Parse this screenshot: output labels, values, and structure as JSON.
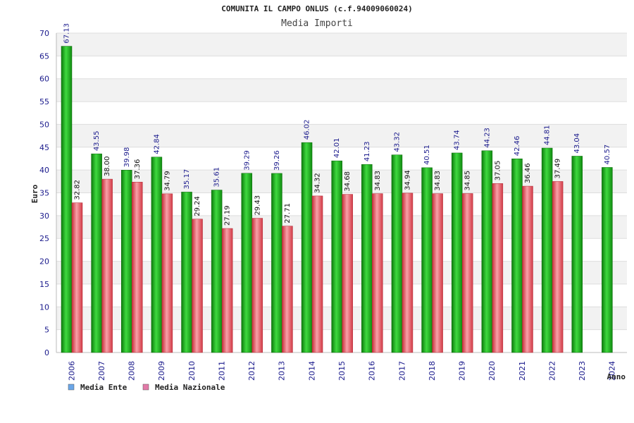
{
  "chart_data": {
    "type": "bar",
    "title": "COMUNITA IL CAMPO ONLUS (c.f.94009060024)",
    "subtitle": "Media Importi",
    "xlabel": "Anno",
    "ylabel": "Euro",
    "ylim": [
      0,
      70
    ],
    "ytick_step": 5,
    "grid": true,
    "legend_position": "bottom-left",
    "categories": [
      "2006",
      "2007",
      "2008",
      "2009",
      "2010",
      "2011",
      "2012",
      "2013",
      "2014",
      "2015",
      "2016",
      "2017",
      "2018",
      "2019",
      "2020",
      "2021",
      "2022",
      "2023",
      "2024"
    ],
    "series": [
      {
        "name": "Media Ente",
        "color": "#22b022",
        "label_color": "#1a1a8c",
        "values": [
          67.13,
          43.55,
          39.98,
          42.84,
          35.17,
          35.61,
          39.29,
          39.26,
          46.02,
          42.01,
          41.23,
          43.32,
          40.51,
          43.74,
          44.23,
          42.46,
          44.81,
          43.04,
          40.57
        ],
        "labels": [
          "67.13",
          "43.55",
          "39.98",
          "42.84",
          "35.17",
          "35.61",
          "39.29",
          "39.26",
          "46.02",
          "42.01",
          "41.23",
          "43.32",
          "40.51",
          "43.74",
          "44.23",
          "42.46",
          "44.81",
          "43.04",
          "40.57"
        ]
      },
      {
        "name": "Media Nazionale",
        "color": "#e84a55",
        "label_color": "#111111",
        "values": [
          32.82,
          38.0,
          37.36,
          34.79,
          29.24,
          27.19,
          29.43,
          27.71,
          34.32,
          34.68,
          34.83,
          34.94,
          34.83,
          34.85,
          37.05,
          36.46,
          37.49,
          null,
          null
        ],
        "labels": [
          "32.82",
          "38.00",
          "37.36",
          "34.79",
          "29.24",
          "27.19",
          "29.43",
          "27.71",
          "34.32",
          "34.68",
          "34.83",
          "34.94",
          "34.83",
          "34.85",
          "37.05",
          "36.46",
          "37.49",
          "",
          ""
        ]
      }
    ],
    "legend": [
      {
        "name": "Media Ente",
        "swatch": "#6aa6e8"
      },
      {
        "name": "Media Nazionale",
        "swatch": "#e37aa8"
      }
    ]
  }
}
